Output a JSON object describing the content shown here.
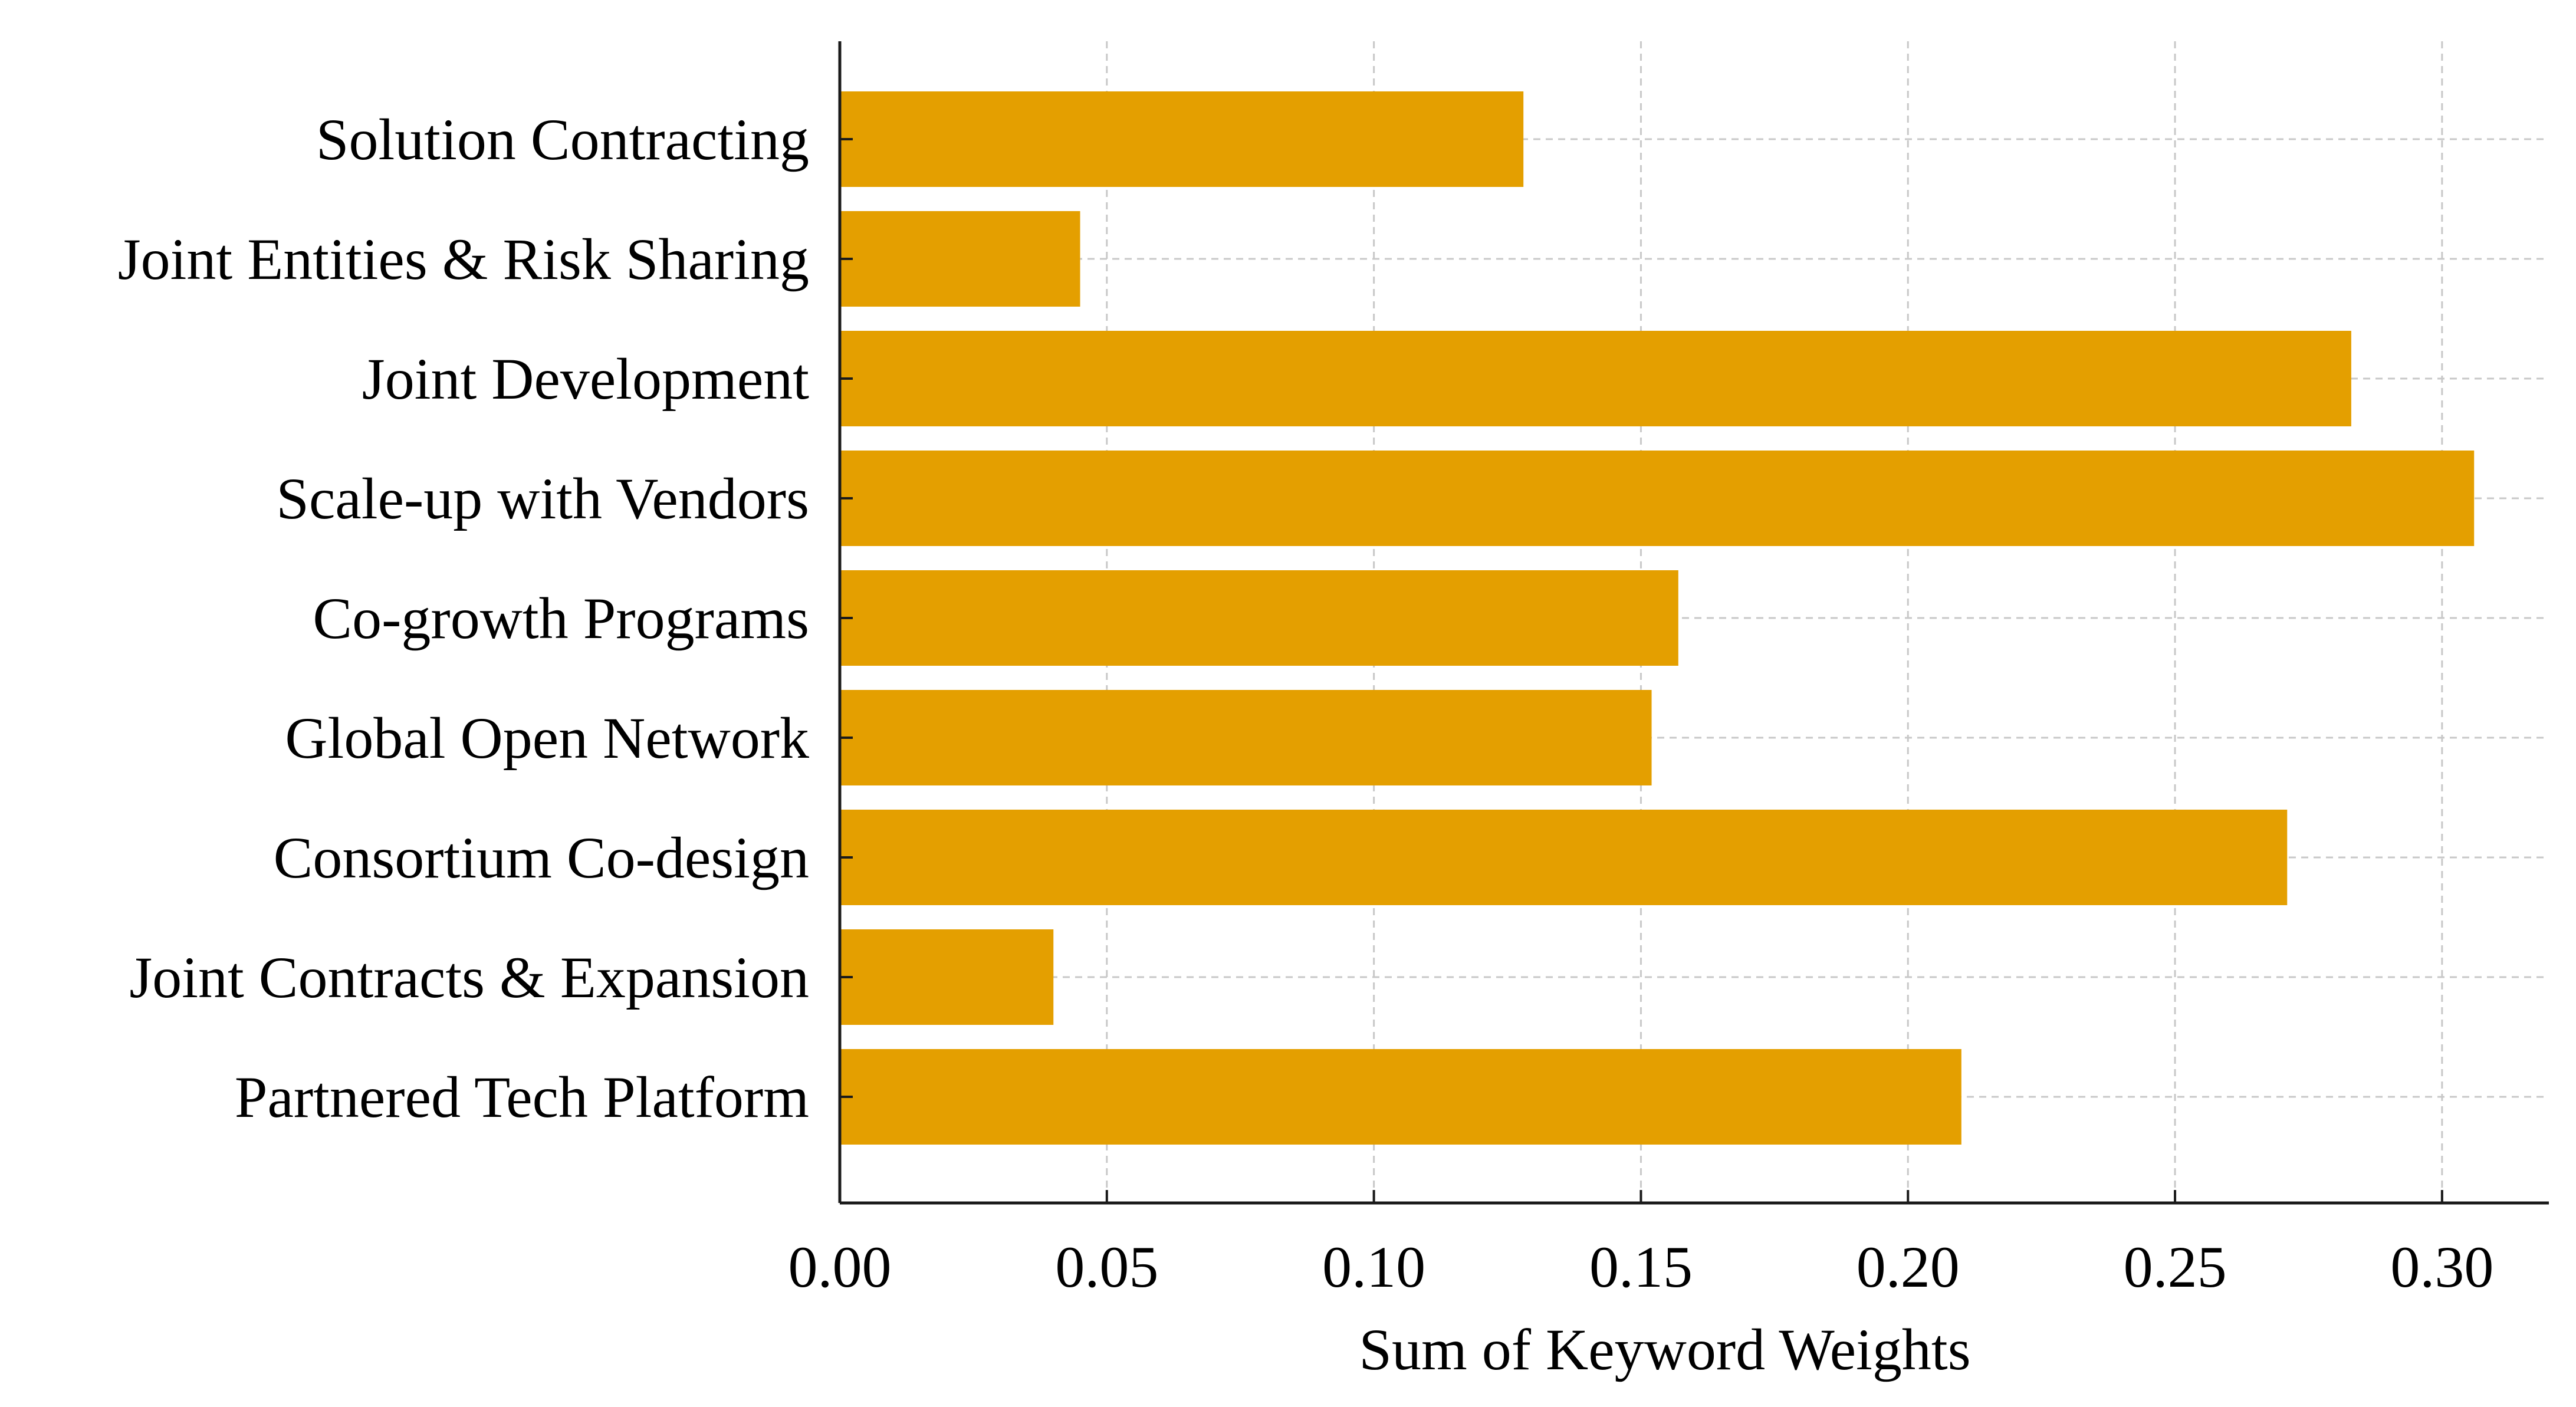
{
  "chart_data": {
    "type": "bar",
    "orientation": "horizontal",
    "title": "",
    "xlabel": "Sum of Keyword Weights",
    "ylabel": "",
    "xlim": [
      0,
      0.32
    ],
    "grid": true,
    "bar_color": "#e49f00",
    "categories": [
      "Solution Contracting",
      "Joint Entities & Risk Sharing",
      "Joint Development",
      "Scale-up with Vendors",
      "Co-growth Programs",
      "Global Open Network",
      "Consortium Co-design",
      "Joint Contracts & Expansion",
      "Partnered Tech Platform"
    ],
    "values": [
      0.128,
      0.045,
      0.283,
      0.306,
      0.157,
      0.152,
      0.271,
      0.04,
      0.21
    ],
    "xticks": [
      0.0,
      0.05,
      0.1,
      0.15,
      0.2,
      0.25,
      0.3
    ],
    "xtick_labels": [
      "0.00",
      "0.05",
      "0.10",
      "0.15",
      "0.20",
      "0.25",
      "0.30"
    ]
  }
}
